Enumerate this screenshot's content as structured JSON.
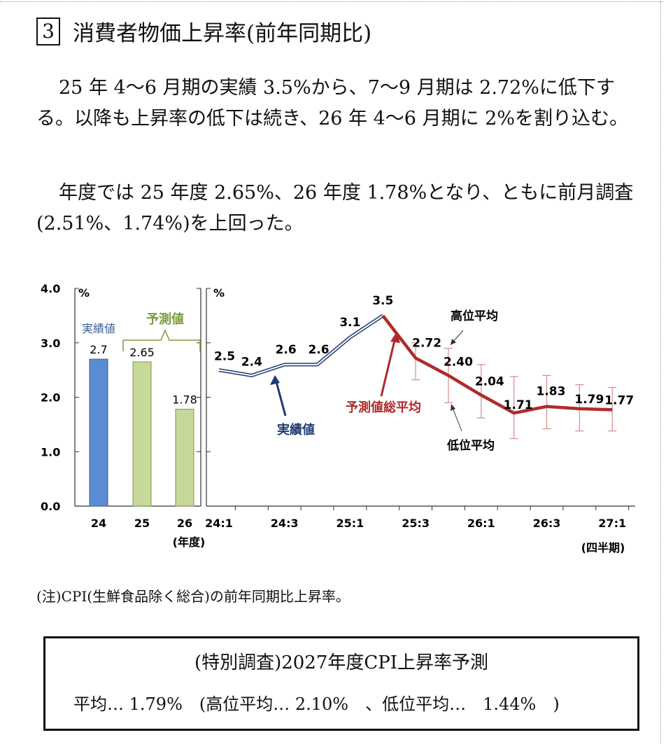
{
  "section": {
    "number": "3",
    "title": "消費者物価上昇率(前年同期比)"
  },
  "paragraphs": [
    "25 年 4～6 月期の実績 3.5%から、7～9 月期は 2.72%に低下する。以降も上昇率の低下は続き、26 年 4～6 月期に 2%を割り込む。",
    "年度では 25 年度 2.65%、26 年度 1.78%となり、ともに前月調査(2.51%、1.74%)を上回った。"
  ],
  "note": "(注)CPI(生鮮食品除く総合)の前年同期比上昇率。",
  "special_box": {
    "title": "(特別調査)2027年度CPI上昇率予測",
    "line": "平均… 1.79%　(高位平均… 2.10%　、低位平均…　1.44%　)"
  },
  "chart_data": [
    {
      "type": "bar",
      "unit_label": "%",
      "ylim": [
        0,
        4
      ],
      "yticks": [
        "0.0",
        "1.0",
        "2.0",
        "3.0",
        "4.0"
      ],
      "categories": [
        "24",
        "25",
        "26"
      ],
      "values": [
        2.7,
        2.65,
        1.78
      ],
      "value_labels": [
        "2.7",
        "2.65",
        "1.78"
      ],
      "bar_kinds": [
        "actual",
        "forecast",
        "forecast"
      ],
      "colors": {
        "actual": "#5b8bd0",
        "forecast": "#c6d89a",
        "forecast_label": "#7a9a3c"
      },
      "labels": {
        "actual": "実績値",
        "forecast": "予測値"
      },
      "xlabel": "(年度)"
    },
    {
      "type": "line",
      "unit_label": "%",
      "ylim": [
        0,
        4
      ],
      "x_ticks": [
        "24:1",
        "24:3",
        "25:1",
        "25:3",
        "26:1",
        "26:3",
        "27:1"
      ],
      "xlabel": "(四半期)",
      "actual": {
        "name": "実績値",
        "color": "#1f3a73",
        "x": [
          "24:1",
          "24:2",
          "24:3",
          "24:4",
          "25:1",
          "25:2"
        ],
        "values": [
          2.5,
          2.4,
          2.6,
          2.6,
          3.1,
          3.5
        ],
        "value_labels": [
          "2.5",
          "2.4",
          "2.6",
          "2.6",
          "3.1",
          "3.5"
        ]
      },
      "forecast": {
        "name": "予測値総平均",
        "color": "#b02a2a",
        "x": [
          "25:2",
          "25:3",
          "25:4",
          "26:1",
          "26:2",
          "26:3",
          "26:4",
          "27:1"
        ],
        "values": [
          3.5,
          2.72,
          2.4,
          2.04,
          1.71,
          1.83,
          1.79,
          1.77
        ],
        "value_labels": [
          "",
          "2.72",
          "2.40",
          "2.04",
          "1.71",
          "1.83",
          "1.79",
          "1.77"
        ],
        "high": [
          null,
          3.0,
          2.9,
          2.6,
          2.38,
          2.4,
          2.23,
          2.18
        ],
        "low": [
          null,
          2.32,
          1.9,
          1.62,
          1.24,
          1.42,
          1.38,
          1.38
        ]
      },
      "annotations": {
        "high": "高位平均",
        "low": "低位平均"
      },
      "errorbar_color": "#d88a8a"
    }
  ]
}
